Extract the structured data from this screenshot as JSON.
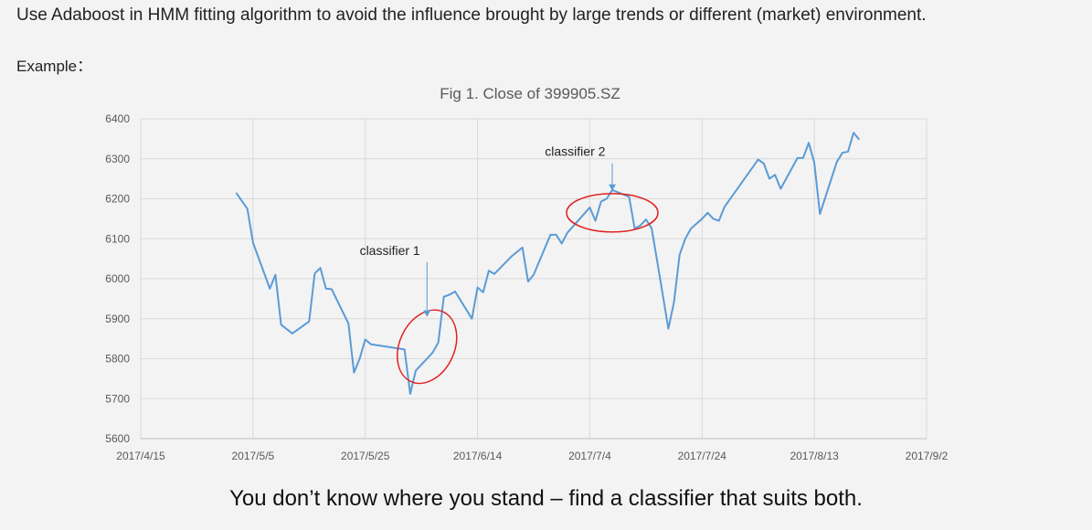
{
  "intro_text": "Use Adaboost in HMM fitting algorithm to avoid the influence brought by large trends or different (market) environment.",
  "example_label": "Example：",
  "conclusion_text": "You don’t know where you stand – find a classifier that suits both.",
  "chart_data": {
    "type": "line",
    "title": "Fig 1. Close of 399905.SZ",
    "xlabel": "",
    "ylabel": "",
    "x_tick_labels": [
      "2017/4/15",
      "2017/5/5",
      "2017/5/25",
      "2017/6/14",
      "2017/7/4",
      "2017/7/24",
      "2017/8/13",
      "2017/9/2"
    ],
    "y_tick_labels": [
      "5600",
      "5700",
      "5800",
      "5900",
      "6000",
      "6100",
      "6200",
      "6300",
      "6400"
    ],
    "xlim": [
      "2017-04-15",
      "2017-09-02"
    ],
    "ylim": [
      5600,
      6400
    ],
    "grid": true,
    "line_color": "#5b9bd5",
    "series": [
      {
        "values": [
          {
            "x": "2017-05-02",
            "y": 6215
          },
          {
            "x": "2017-05-04",
            "y": 6175
          },
          {
            "x": "2017-05-05",
            "y": 6090
          },
          {
            "x": "2017-05-08",
            "y": 5975
          },
          {
            "x": "2017-05-09",
            "y": 6010
          },
          {
            "x": "2017-05-10",
            "y": 5885
          },
          {
            "x": "2017-05-12",
            "y": 5863
          },
          {
            "x": "2017-05-15",
            "y": 5893
          },
          {
            "x": "2017-05-16",
            "y": 6013
          },
          {
            "x": "2017-05-17",
            "y": 6027
          },
          {
            "x": "2017-05-18",
            "y": 5975
          },
          {
            "x": "2017-05-19",
            "y": 5974
          },
          {
            "x": "2017-05-22",
            "y": 5888
          },
          {
            "x": "2017-05-23",
            "y": 5765
          },
          {
            "x": "2017-05-24",
            "y": 5800
          },
          {
            "x": "2017-05-25",
            "y": 5848
          },
          {
            "x": "2017-05-26",
            "y": 5836
          },
          {
            "x": "2017-06-01",
            "y": 5823
          },
          {
            "x": "2017-06-02",
            "y": 5712
          },
          {
            "x": "2017-06-03",
            "y": 5770
          },
          {
            "x": "2017-06-04",
            "y": 5785
          },
          {
            "x": "2017-06-05",
            "y": 5800
          },
          {
            "x": "2017-06-06",
            "y": 5815
          },
          {
            "x": "2017-06-07",
            "y": 5840
          },
          {
            "x": "2017-06-08",
            "y": 5955
          },
          {
            "x": "2017-06-09",
            "y": 5960
          },
          {
            "x": "2017-06-10",
            "y": 5968
          },
          {
            "x": "2017-06-13",
            "y": 5900
          },
          {
            "x": "2017-06-14",
            "y": 5978
          },
          {
            "x": "2017-06-15",
            "y": 5966
          },
          {
            "x": "2017-06-16",
            "y": 6020
          },
          {
            "x": "2017-06-17",
            "y": 6012
          },
          {
            "x": "2017-06-20",
            "y": 6055
          },
          {
            "x": "2017-06-22",
            "y": 6078
          },
          {
            "x": "2017-06-23",
            "y": 5993
          },
          {
            "x": "2017-06-24",
            "y": 6010
          },
          {
            "x": "2017-06-27",
            "y": 6110
          },
          {
            "x": "2017-06-28",
            "y": 6110
          },
          {
            "x": "2017-06-29",
            "y": 6088
          },
          {
            "x": "2017-06-30",
            "y": 6115
          },
          {
            "x": "2017-07-04",
            "y": 6178
          },
          {
            "x": "2017-07-05",
            "y": 6145
          },
          {
            "x": "2017-07-06",
            "y": 6193
          },
          {
            "x": "2017-07-07",
            "y": 6200
          },
          {
            "x": "2017-07-08",
            "y": 6222
          },
          {
            "x": "2017-07-11",
            "y": 6205
          },
          {
            "x": "2017-07-12",
            "y": 6125
          },
          {
            "x": "2017-07-13",
            "y": 6133
          },
          {
            "x": "2017-07-14",
            "y": 6148
          },
          {
            "x": "2017-07-15",
            "y": 6127
          },
          {
            "x": "2017-07-16",
            "y": 6045
          },
          {
            "x": "2017-07-18",
            "y": 5875
          },
          {
            "x": "2017-07-19",
            "y": 5942
          },
          {
            "x": "2017-07-20",
            "y": 6060
          },
          {
            "x": "2017-07-21",
            "y": 6100
          },
          {
            "x": "2017-07-22",
            "y": 6125
          },
          {
            "x": "2017-07-24",
            "y": 6150
          },
          {
            "x": "2017-07-25",
            "y": 6165
          },
          {
            "x": "2017-07-26",
            "y": 6150
          },
          {
            "x": "2017-07-27",
            "y": 6145
          },
          {
            "x": "2017-07-28",
            "y": 6180
          },
          {
            "x": "2017-08-03",
            "y": 6298
          },
          {
            "x": "2017-08-04",
            "y": 6288
          },
          {
            "x": "2017-08-05",
            "y": 6250
          },
          {
            "x": "2017-08-06",
            "y": 6260
          },
          {
            "x": "2017-08-07",
            "y": 6225
          },
          {
            "x": "2017-08-10",
            "y": 6302
          },
          {
            "x": "2017-08-11",
            "y": 6302
          },
          {
            "x": "2017-08-12",
            "y": 6340
          },
          {
            "x": "2017-08-13",
            "y": 6290
          },
          {
            "x": "2017-08-14",
            "y": 6162
          },
          {
            "x": "2017-08-17",
            "y": 6292
          },
          {
            "x": "2017-08-18",
            "y": 6315
          },
          {
            "x": "2017-08-19",
            "y": 6318
          },
          {
            "x": "2017-08-20",
            "y": 6365
          },
          {
            "x": "2017-08-21",
            "y": 6348
          }
        ]
      }
    ],
    "annotations": [
      {
        "label": "classifier 1",
        "text_at": {
          "x": "2017-05-24",
          "y": 6060
        },
        "arrow_to": {
          "x": "2017-06-05",
          "y": 5905
        }
      },
      {
        "label": "classifier 2",
        "text_at": {
          "x": "2017-06-26",
          "y": 6307
        },
        "arrow_to": {
          "x": "2017-07-08",
          "y": 6220
        }
      }
    ],
    "highlight_ellipses": [
      {
        "center": {
          "x": "2017-06-05",
          "y": 5830
        },
        "color": "#e02020"
      },
      {
        "center": {
          "x": "2017-07-08",
          "y": 6165
        },
        "color": "#e02020"
      }
    ]
  }
}
